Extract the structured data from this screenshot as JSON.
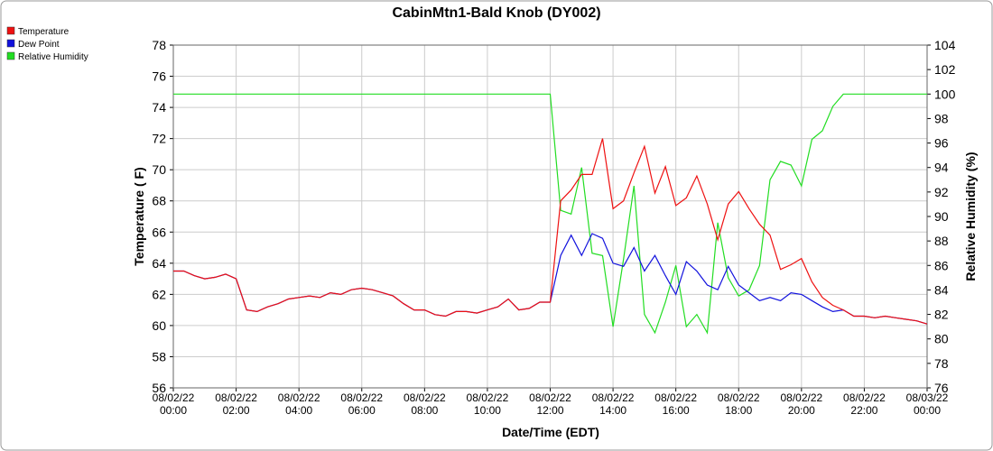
{
  "chart_data": {
    "type": "line",
    "title": "CabinMtn1-Bald Knob (DY002)",
    "xlabel": "Date/Time (EDT)",
    "ylabel": "Temperature ( F)",
    "y2label": "Relative Humidity (%)",
    "x": [
      "08/02/22 00:00",
      "08/02/22 00:20",
      "08/02/22 00:40",
      "08/02/22 01:00",
      "08/02/22 01:20",
      "08/02/22 01:40",
      "08/02/22 02:00",
      "08/02/22 02:20",
      "08/02/22 02:40",
      "08/02/22 03:00",
      "08/02/22 03:20",
      "08/02/22 03:40",
      "08/02/22 04:00",
      "08/02/22 04:20",
      "08/02/22 04:40",
      "08/02/22 05:00",
      "08/02/22 05:20",
      "08/02/22 05:40",
      "08/02/22 06:00",
      "08/02/22 06:20",
      "08/02/22 06:40",
      "08/02/22 07:00",
      "08/02/22 07:20",
      "08/02/22 07:40",
      "08/02/22 08:00",
      "08/02/22 08:20",
      "08/02/22 08:40",
      "08/02/22 09:00",
      "08/02/22 09:20",
      "08/02/22 09:40",
      "08/02/22 10:00",
      "08/02/22 10:20",
      "08/02/22 10:40",
      "08/02/22 11:00",
      "08/02/22 11:20",
      "08/02/22 11:40",
      "08/02/22 12:00",
      "08/02/22 12:20",
      "08/02/22 12:40",
      "08/02/22 13:00",
      "08/02/22 13:20",
      "08/02/22 13:40",
      "08/02/22 14:00",
      "08/02/22 14:20",
      "08/02/22 14:40",
      "08/02/22 15:00",
      "08/02/22 15:20",
      "08/02/22 15:40",
      "08/02/22 16:00",
      "08/02/22 16:20",
      "08/02/22 16:40",
      "08/02/22 17:00",
      "08/02/22 17:20",
      "08/02/22 17:40",
      "08/02/22 18:00",
      "08/02/22 18:20",
      "08/02/22 18:40",
      "08/02/22 19:00",
      "08/02/22 19:20",
      "08/02/22 19:40",
      "08/02/22 20:00",
      "08/02/22 20:20",
      "08/02/22 20:40",
      "08/02/22 21:00",
      "08/02/22 21:20",
      "08/02/22 21:40",
      "08/02/22 22:00",
      "08/02/22 22:20",
      "08/02/22 22:40",
      "08/02/22 23:00",
      "08/02/22 23:20",
      "08/02/22 23:40",
      "08/03/22 00:00"
    ],
    "series": [
      {
        "name": "Temperature",
        "color": "#ee1111",
        "values": [
          63.5,
          63.5,
          63.2,
          63.0,
          63.1,
          63.3,
          63.0,
          61.0,
          60.9,
          61.2,
          61.4,
          61.7,
          61.8,
          61.9,
          61.8,
          62.1,
          62.0,
          62.3,
          62.4,
          62.3,
          62.1,
          61.9,
          61.4,
          61.0,
          61.0,
          60.7,
          60.6,
          60.9,
          60.9,
          60.8,
          61.0,
          61.2,
          61.7,
          61.0,
          61.1,
          61.5,
          61.5,
          68.0,
          68.7,
          69.7,
          69.7,
          72.0,
          67.5,
          68.0,
          69.8,
          71.5,
          68.5,
          70.2,
          67.7,
          68.2,
          69.6,
          67.8,
          65.5,
          67.8,
          68.6,
          67.5,
          66.5,
          65.8,
          63.6,
          63.9,
          64.3,
          62.8,
          61.8,
          61.3,
          61.0,
          60.6,
          60.6,
          60.5,
          60.6,
          60.5,
          60.4,
          60.3,
          60.1
        ]
      },
      {
        "name": "Dew Point",
        "color": "#1111dd",
        "values": [
          63.5,
          63.5,
          63.2,
          63.0,
          63.1,
          63.3,
          63.0,
          61.0,
          60.9,
          61.2,
          61.4,
          61.7,
          61.8,
          61.9,
          61.8,
          62.1,
          62.0,
          62.3,
          62.4,
          62.3,
          62.1,
          61.9,
          61.4,
          61.0,
          61.0,
          60.7,
          60.6,
          60.9,
          60.9,
          60.8,
          61.0,
          61.2,
          61.7,
          61.0,
          61.1,
          61.5,
          61.5,
          64.5,
          65.8,
          64.5,
          65.9,
          65.6,
          64.0,
          63.8,
          65.0,
          63.5,
          64.5,
          63.2,
          62.0,
          64.1,
          63.5,
          62.6,
          62.3,
          63.8,
          62.6,
          62.1,
          61.6,
          61.8,
          61.6,
          62.1,
          62.0,
          61.6,
          61.2,
          60.9,
          61.0,
          60.6,
          60.6,
          60.5,
          60.6,
          60.5,
          60.4,
          60.3,
          60.1
        ]
      },
      {
        "name": "Relative Humidity",
        "color": "#22dd22",
        "axis": "y2",
        "values": [
          100,
          100,
          100,
          100,
          100,
          100,
          100,
          100,
          100,
          100,
          100,
          100,
          100,
          100,
          100,
          100,
          100,
          100,
          100,
          100,
          100,
          100,
          100,
          100,
          100,
          100,
          100,
          100,
          100,
          100,
          100,
          100,
          100,
          100,
          100,
          100,
          100,
          90.5,
          90.2,
          94,
          87,
          86.8,
          81,
          86.5,
          92.5,
          82,
          80.5,
          83,
          86,
          81,
          82,
          80.5,
          89.5,
          85,
          83.5,
          84,
          86,
          93,
          94.5,
          94.2,
          92.5,
          96.3,
          97,
          99,
          100,
          100,
          100,
          100,
          100,
          100,
          100,
          100,
          100
        ]
      }
    ],
    "ylim": [
      56,
      78
    ],
    "yticks": [
      56,
      58,
      60,
      62,
      64,
      66,
      68,
      70,
      72,
      74,
      76,
      78
    ],
    "y2lim": [
      76,
      104
    ],
    "y2ticks": [
      76,
      78,
      80,
      82,
      84,
      86,
      88,
      90,
      92,
      94,
      96,
      98,
      100,
      102,
      104
    ],
    "xticks": [
      "08/02/22 00:00",
      "08/02/22 02:00",
      "08/02/22 04:00",
      "08/02/22 06:00",
      "08/02/22 08:00",
      "08/02/22 10:00",
      "08/02/22 12:00",
      "08/02/22 14:00",
      "08/02/22 16:00",
      "08/02/22 18:00",
      "08/02/22 20:00",
      "08/02/22 22:00",
      "08/03/22 00:00"
    ],
    "grid": true,
    "legend": "top-left"
  }
}
